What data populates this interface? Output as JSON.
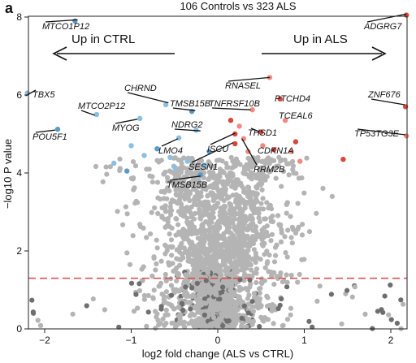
{
  "panel_label": "a",
  "title": "106 Controls vs 323 ALS",
  "arrows": {
    "left": "Up in CTRL",
    "right": "Up in ALS"
  },
  "colors": {
    "bulk": "#b4b4b4",
    "dark": "#6e6e6e",
    "down": "#8bbfe0",
    "down_strong": "#5a9ac6",
    "up": "#f08a80",
    "up_strong": "#d9473c",
    "threshold": "#e0474c"
  },
  "chart_data": {
    "type": "scatter",
    "title": "106 Controls vs 323 ALS",
    "xlabel": "log2 fold change (ALS vs CTRL)",
    "ylabel": "−log10 P value",
    "xlim": [
      -2.25,
      2.2
    ],
    "ylim": [
      0,
      8.2
    ],
    "xticks": [
      "−2",
      "−1",
      "0",
      "1",
      "2"
    ],
    "yticks": [
      "0",
      "2",
      "4",
      "6",
      "8"
    ],
    "threshold_y": 1.3,
    "grid": false,
    "bulk_points_note": "dense V-shaped cloud of non-significant genes centered at x=0",
    "highlighted_genes": [
      {
        "gene": "MTCO1P12",
        "x": -1.62,
        "y": 7.93,
        "direction": "down"
      },
      {
        "gene": "TBX5",
        "x": -2.22,
        "y": 5.98,
        "direction": "down"
      },
      {
        "gene": "MTCO2P12",
        "x": -1.42,
        "y": 5.48,
        "direction": "down"
      },
      {
        "gene": "POU5F1",
        "x": -1.88,
        "y": 5.1,
        "direction": "down"
      },
      {
        "gene": "CHRND",
        "x": -0.57,
        "y": 5.8,
        "direction": "down"
      },
      {
        "gene": "MYOG",
        "x": -0.93,
        "y": 5.38,
        "direction": "down"
      },
      {
        "gene": "TMSB15B",
        "x": -0.26,
        "y": 5.6,
        "direction": "down"
      },
      {
        "gene": "NDRG2",
        "x": -0.2,
        "y": 5.08,
        "direction": "down"
      },
      {
        "gene": "LMO4",
        "x": -0.46,
        "y": 4.88,
        "direction": "down"
      },
      {
        "gene": "TMSB15B",
        "x": -0.2,
        "y": 3.92,
        "direction": "down"
      },
      {
        "gene": "ADGRG7",
        "x": 2.18,
        "y": 8.08,
        "direction": "up"
      },
      {
        "gene": "RNASEL",
        "x": 0.6,
        "y": 6.45,
        "direction": "up"
      },
      {
        "gene": "PTCHD4",
        "x": 0.72,
        "y": 5.9,
        "direction": "up"
      },
      {
        "gene": "TNFRSF10B",
        "x": 0.38,
        "y": 5.62,
        "direction": "up"
      },
      {
        "gene": "ZNF676",
        "x": 2.16,
        "y": 5.75,
        "direction": "up"
      },
      {
        "gene": "TCEAL6",
        "x": 0.77,
        "y": 5.35,
        "direction": "up"
      },
      {
        "gene": "THSD1",
        "x": 0.48,
        "y": 5.06,
        "direction": "up"
      },
      {
        "gene": "TP53TG3E",
        "x": 2.17,
        "y": 4.98,
        "direction": "up"
      },
      {
        "gene": "ISCU",
        "x": 0.2,
        "y": 5.02,
        "direction": "up"
      },
      {
        "gene": "CDKN1A",
        "x": 0.5,
        "y": 4.72,
        "direction": "up"
      },
      {
        "gene": "SESN1",
        "x": 0.18,
        "y": 4.78,
        "direction": "up"
      },
      {
        "gene": "RRM2B",
        "x": 0.28,
        "y": 4.88,
        "direction": "up"
      }
    ],
    "other_significant_points": {
      "down": [
        [
          -1.65,
          7.9
        ],
        [
          -2.2,
          6.05
        ],
        [
          -1.4,
          5.5
        ],
        [
          -1.85,
          5.12
        ],
        [
          -0.6,
          5.75
        ],
        [
          -0.9,
          5.4
        ],
        [
          -0.3,
          5.58
        ],
        [
          -0.25,
          5.1
        ],
        [
          -0.45,
          4.9
        ],
        [
          -0.2,
          3.95
        ],
        [
          -1.0,
          4.7
        ],
        [
          -0.85,
          4.45
        ],
        [
          -0.7,
          4.62
        ],
        [
          -0.55,
          4.4
        ],
        [
          -0.35,
          4.3
        ],
        [
          -0.1,
          4.55
        ],
        [
          -0.5,
          4.15
        ],
        [
          -1.2,
          4.25
        ],
        [
          -1.05,
          4.05
        ],
        [
          -0.15,
          4.2
        ]
      ],
      "up": [
        [
          2.18,
          8.05
        ],
        [
          0.6,
          6.45
        ],
        [
          0.72,
          5.9
        ],
        [
          0.4,
          5.62
        ],
        [
          2.17,
          5.7
        ],
        [
          0.78,
          5.35
        ],
        [
          0.5,
          5.05
        ],
        [
          2.18,
          4.95
        ],
        [
          0.2,
          5.0
        ],
        [
          0.52,
          4.7
        ],
        [
          0.2,
          4.75
        ],
        [
          0.3,
          4.88
        ],
        [
          0.9,
          4.8
        ],
        [
          0.85,
          4.55
        ],
        [
          0.65,
          4.6
        ],
        [
          0.35,
          4.55
        ],
        [
          1.45,
          4.35
        ],
        [
          0.95,
          4.3
        ],
        [
          0.15,
          5.35
        ],
        [
          0.25,
          5.2
        ]
      ]
    }
  }
}
